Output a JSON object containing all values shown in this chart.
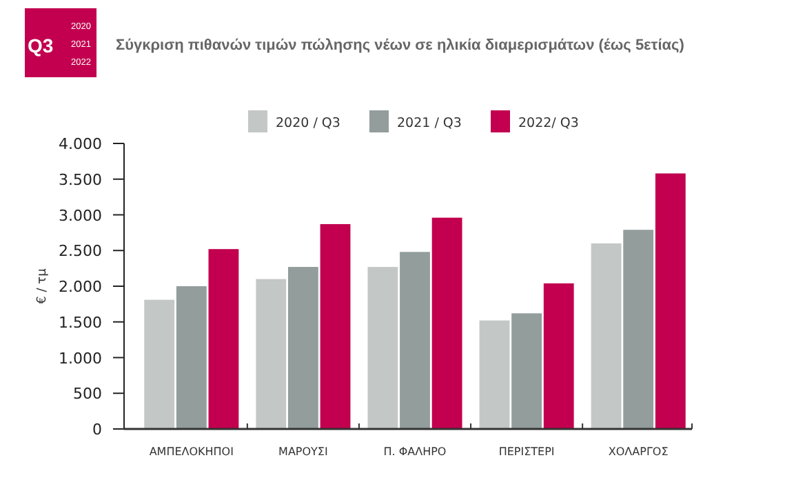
{
  "chart_data": {
    "type": "bar",
    "title": "Σύγκριση πιθανών τιμών πώλησης νέων σε ηλικία διαμερισμάτων (έως 5ετίας)",
    "annotations": [
      "Q3",
      "2020",
      "2021",
      "2022"
    ],
    "ylabel": "€ / τμ",
    "categories": [
      "ΑΜΠΕΛΟΚΗΠΟΙ",
      "ΜΑΡΟΥΣΙ",
      "Π. ΦΑΛΗΡΟ",
      "ΠΕΡΙΣΤΕΡΙ",
      "ΧΟΛΑΡΓΟΣ"
    ],
    "series": [
      {
        "name": "2020 / Q3",
        "color": "#c3c7c6",
        "values": [
          1810,
          2100,
          2270,
          1520,
          2600
        ]
      },
      {
        "name": "2021 / Q3",
        "color": "#929d9c",
        "values": [
          2000,
          2270,
          2480,
          1620,
          2790
        ]
      },
      {
        "name": "2022/ Q3",
        "color": "#c2004f",
        "values": [
          2520,
          2870,
          2960,
          2040,
          3580
        ]
      }
    ],
    "ylim": [
      0,
      4000
    ],
    "yticks": [
      {
        "value": 0,
        "label": "0"
      },
      {
        "value": 500,
        "label": "500"
      },
      {
        "value": 1000,
        "label": "1.000"
      },
      {
        "value": 1500,
        "label": "1.500"
      },
      {
        "value": 2000,
        "label": "2.000"
      },
      {
        "value": 2500,
        "label": "2.500"
      },
      {
        "value": 3000,
        "label": "3.000"
      },
      {
        "value": 3500,
        "label": "3.500"
      },
      {
        "value": 4000,
        "label": "4.000"
      }
    ],
    "legend": "top",
    "grid": false
  }
}
